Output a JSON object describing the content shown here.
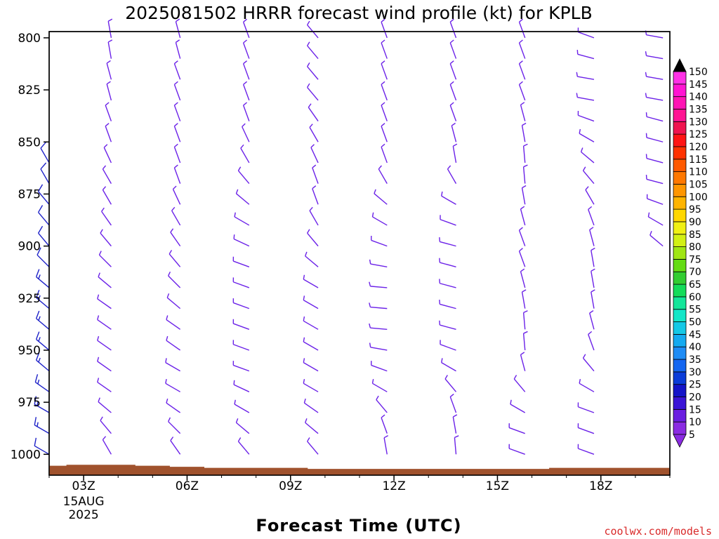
{
  "chart_data": {
    "type": "wind-barb profile",
    "title": "2025081502 HRRR forecast wind profile (kt) for KPLB",
    "xlabel": "Forecast Time (UTC)",
    "x_ticks": [
      {
        "t": 3,
        "label": "03Z",
        "sub1": "15AUG",
        "sub2": "2025"
      },
      {
        "t": 6,
        "label": "06Z"
      },
      {
        "t": 9,
        "label": "09Z"
      },
      {
        "t": 12,
        "label": "12Z"
      },
      {
        "t": 15,
        "label": "15Z"
      },
      {
        "t": 18,
        "label": "18Z"
      }
    ],
    "xlim": [
      2.0,
      20.0
    ],
    "ylim": [
      1010,
      797
    ],
    "y_ticks": [
      800,
      825,
      850,
      875,
      900,
      925,
      950,
      975,
      1000
    ],
    "pressure_levels": [
      800,
      810,
      820,
      830,
      840,
      850,
      860,
      870,
      880,
      890,
      900,
      910,
      920,
      930,
      940,
      950,
      960,
      970,
      980,
      990,
      1000
    ],
    "ground_color": "#a0522d",
    "ground_pressure": [
      {
        "t": 2.0,
        "p": 1005.5
      },
      {
        "t": 2.5,
        "p": 1005.5
      },
      {
        "t": 2.5,
        "p": 1005.0
      },
      {
        "t": 4.5,
        "p": 1005.0
      },
      {
        "t": 4.5,
        "p": 1005.5
      },
      {
        "t": 5.5,
        "p": 1005.5
      },
      {
        "t": 5.5,
        "p": 1006.0
      },
      {
        "t": 6.5,
        "p": 1006.0
      },
      {
        "t": 6.5,
        "p": 1006.5
      },
      {
        "t": 9.5,
        "p": 1006.5
      },
      {
        "t": 9.5,
        "p": 1007.0
      },
      {
        "t": 16.5,
        "p": 1007.0
      },
      {
        "t": 16.5,
        "p": 1006.5
      },
      {
        "t": 20.0,
        "p": 1006.5
      }
    ],
    "wind_columns": [
      {
        "t": 2.0,
        "color": "#1e22c8",
        "dir": [
          null,
          null,
          null,
          null,
          null,
          null,
          330,
          330,
          320,
          320,
          320,
          315,
          310,
          310,
          310,
          310,
          310,
          305,
          300,
          300,
          300
        ],
        "spd": [
          null,
          null,
          null,
          null,
          null,
          null,
          10,
          10,
          10,
          10,
          12,
          12,
          14,
          14,
          15,
          15,
          15,
          15,
          14,
          13,
          10
        ]
      },
      {
        "t": 3.8,
        "color": "#6b21e8",
        "dir": [
          350,
          350,
          345,
          345,
          340,
          340,
          335,
          330,
          330,
          325,
          320,
          315,
          310,
          305,
          305,
          305,
          305,
          305,
          310,
          320,
          330
        ],
        "spd": [
          5,
          5,
          5,
          5,
          6,
          6,
          6,
          6,
          6,
          6,
          7,
          7,
          7,
          7,
          7,
          7,
          7,
          7,
          7,
          7,
          6
        ]
      },
      {
        "t": 5.8,
        "color": "#6b21e8",
        "dir": [
          345,
          345,
          340,
          340,
          340,
          340,
          340,
          340,
          335,
          330,
          325,
          320,
          315,
          310,
          305,
          305,
          300,
          300,
          305,
          315,
          325
        ],
        "spd": [
          5,
          5,
          5,
          5,
          5,
          5,
          6,
          6,
          6,
          6,
          6,
          7,
          7,
          7,
          7,
          7,
          7,
          7,
          7,
          6,
          6
        ]
      },
      {
        "t": 7.8,
        "color": "#6b21e8",
        "dir": [
          340,
          340,
          340,
          340,
          340,
          335,
          330,
          320,
          310,
          300,
          295,
          290,
          290,
          290,
          290,
          290,
          290,
          295,
          300,
          310,
          320
        ],
        "spd": [
          5,
          5,
          5,
          5,
          5,
          5,
          6,
          6,
          6,
          7,
          7,
          7,
          7,
          7,
          7,
          7,
          7,
          7,
          7,
          6,
          6
        ]
      },
      {
        "t": 9.8,
        "color": "#6b21e8",
        "dir": [
          320,
          320,
          320,
          320,
          325,
          330,
          335,
          340,
          340,
          330,
          320,
          310,
          300,
          300,
          300,
          300,
          300,
          300,
          305,
          310,
          320
        ],
        "spd": [
          5,
          5,
          5,
          5,
          5,
          5,
          5,
          5,
          6,
          6,
          6,
          6,
          6,
          6,
          6,
          6,
          6,
          6,
          6,
          6,
          5
        ]
      },
      {
        "t": 11.8,
        "color": "#6b21e8",
        "dir": [
          340,
          340,
          340,
          340,
          340,
          340,
          340,
          330,
          310,
          300,
          290,
          280,
          275,
          275,
          275,
          280,
          290,
          300,
          320,
          340,
          350
        ],
        "spd": [
          5,
          5,
          5,
          5,
          5,
          5,
          5,
          5,
          6,
          6,
          6,
          6,
          6,
          6,
          6,
          6,
          6,
          6,
          5,
          5,
          5
        ]
      },
      {
        "t": 13.8,
        "color": "#6b21e8",
        "dir": [
          340,
          340,
          340,
          340,
          340,
          345,
          350,
          330,
          300,
          290,
          285,
          285,
          285,
          285,
          285,
          290,
          300,
          320,
          340,
          350,
          355
        ],
        "spd": [
          5,
          5,
          5,
          5,
          5,
          5,
          5,
          5,
          6,
          6,
          6,
          6,
          6,
          6,
          6,
          6,
          6,
          6,
          5,
          5,
          5
        ]
      },
      {
        "t": 15.8,
        "color": "#6b21e8",
        "dir": [
          340,
          340,
          340,
          340,
          345,
          350,
          355,
          355,
          350,
          345,
          340,
          340,
          345,
          350,
          355,
          355,
          345,
          320,
          300,
          290,
          290
        ],
        "spd": [
          5,
          5,
          5,
          5,
          5,
          5,
          5,
          5,
          5,
          5,
          5,
          5,
          5,
          5,
          5,
          5,
          5,
          5,
          6,
          6,
          6
        ]
      },
      {
        "t": 17.8,
        "color": "#6b21e8",
        "dir": [
          290,
          285,
          280,
          280,
          290,
          300,
          310,
          320,
          330,
          340,
          345,
          350,
          350,
          350,
          345,
          340,
          320,
          300,
          290,
          290,
          290
        ],
        "spd": [
          5,
          5,
          5,
          5,
          5,
          5,
          5,
          5,
          5,
          5,
          5,
          5,
          5,
          5,
          5,
          5,
          6,
          6,
          6,
          6,
          6
        ]
      },
      {
        "t": 19.8,
        "color": "#6b21e8",
        "dir": [
          280,
          280,
          280,
          280,
          285,
          285,
          285,
          285,
          290,
          300,
          310,
          null,
          null,
          null,
          null,
          null,
          null,
          null,
          null,
          null,
          null
        ],
        "spd": [
          5,
          5,
          5,
          5,
          5,
          5,
          5,
          5,
          5,
          6,
          6,
          null,
          null,
          null,
          null,
          null,
          null,
          null,
          null,
          null,
          null
        ]
      }
    ],
    "colorbar": {
      "levels": [
        5,
        10,
        15,
        20,
        25,
        30,
        35,
        40,
        45,
        50,
        55,
        60,
        65,
        70,
        75,
        80,
        85,
        90,
        95,
        100,
        105,
        110,
        115,
        120,
        125,
        130,
        135,
        140,
        145,
        150
      ],
      "colors": [
        "#8a2be2",
        "#6a1ee0",
        "#3a14d6",
        "#1414c8",
        "#0a3cd8",
        "#1466f0",
        "#1e8cf5",
        "#14aaf0",
        "#14c8e6",
        "#14e6c8",
        "#14e69a",
        "#14dc5a",
        "#32cd32",
        "#64dc14",
        "#a0e614",
        "#d2f014",
        "#f0f014",
        "#ffd700",
        "#ffb400",
        "#ff9600",
        "#ff7800",
        "#ff5a00",
        "#ff3200",
        "#ff1414",
        "#f01450",
        "#ff1493",
        "#ff14b4",
        "#ff14d2",
        "#ff32e6",
        "#000000"
      ]
    }
  },
  "credit": "coolwx.com/models"
}
